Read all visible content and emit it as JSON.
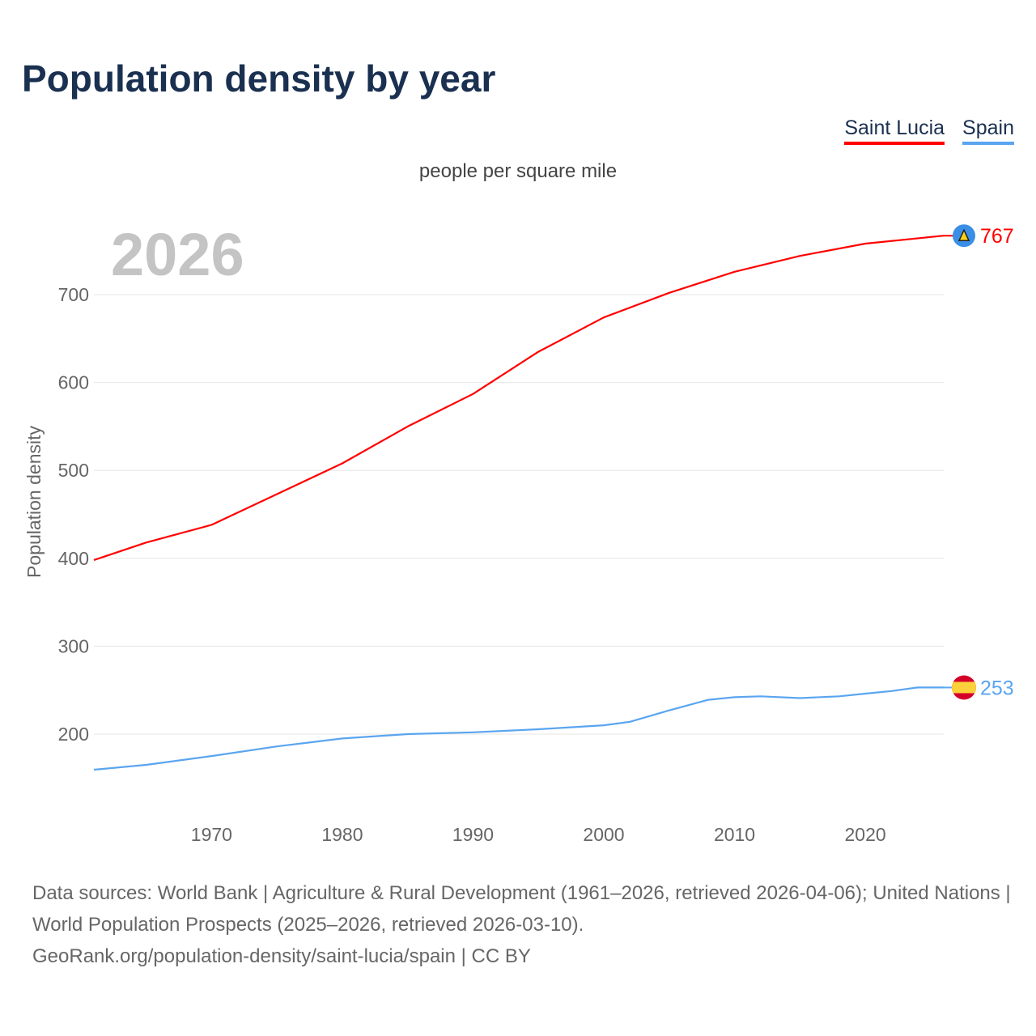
{
  "chart_data": {
    "type": "line",
    "title": "Population density by year",
    "subtitle": "people per square mile",
    "ylabel": "Population density",
    "xlabel": "",
    "watermark_year": "2026",
    "xlim": [
      1961,
      2026
    ],
    "ylim": [
      110,
      790
    ],
    "x_ticks": [
      1970,
      1980,
      1990,
      2000,
      2010,
      2020
    ],
    "y_ticks": [
      200,
      300,
      400,
      500,
      600,
      700
    ],
    "grid": true,
    "legend_position": "top-right",
    "series": [
      {
        "name": "Saint Lucia",
        "color": "#ff0000",
        "end_label": "767",
        "x": [
          1961,
          1965,
          1970,
          1975,
          1980,
          1985,
          1990,
          1995,
          2000,
          2005,
          2010,
          2015,
          2020,
          2026
        ],
        "values": [
          398,
          418,
          438,
          473,
          508,
          550,
          587,
          635,
          674,
          702,
          726,
          744,
          758,
          767
        ]
      },
      {
        "name": "Spain",
        "color": "#5aa5f0",
        "end_label": "253",
        "x": [
          1961,
          1965,
          1970,
          1975,
          1980,
          1985,
          1990,
          1995,
          2000,
          2002,
          2005,
          2008,
          2010,
          2012,
          2015,
          2018,
          2020,
          2022,
          2024,
          2026
        ],
        "values": [
          159.5,
          165,
          175,
          186,
          195,
          200,
          202,
          205.5,
          210,
          214,
          227,
          239,
          242,
          243,
          241,
          243,
          246,
          249,
          253,
          253
        ]
      }
    ]
  },
  "source": {
    "line1": "Data sources: World Bank | Agriculture & Rural Development (1961–2026, retrieved 2026-04-06); United Nations | World Population Prospects (2025–2026, retrieved 2026-03-10).",
    "line2": "GeoRank.org/population-density/saint-lucia/spain | CC BY"
  }
}
